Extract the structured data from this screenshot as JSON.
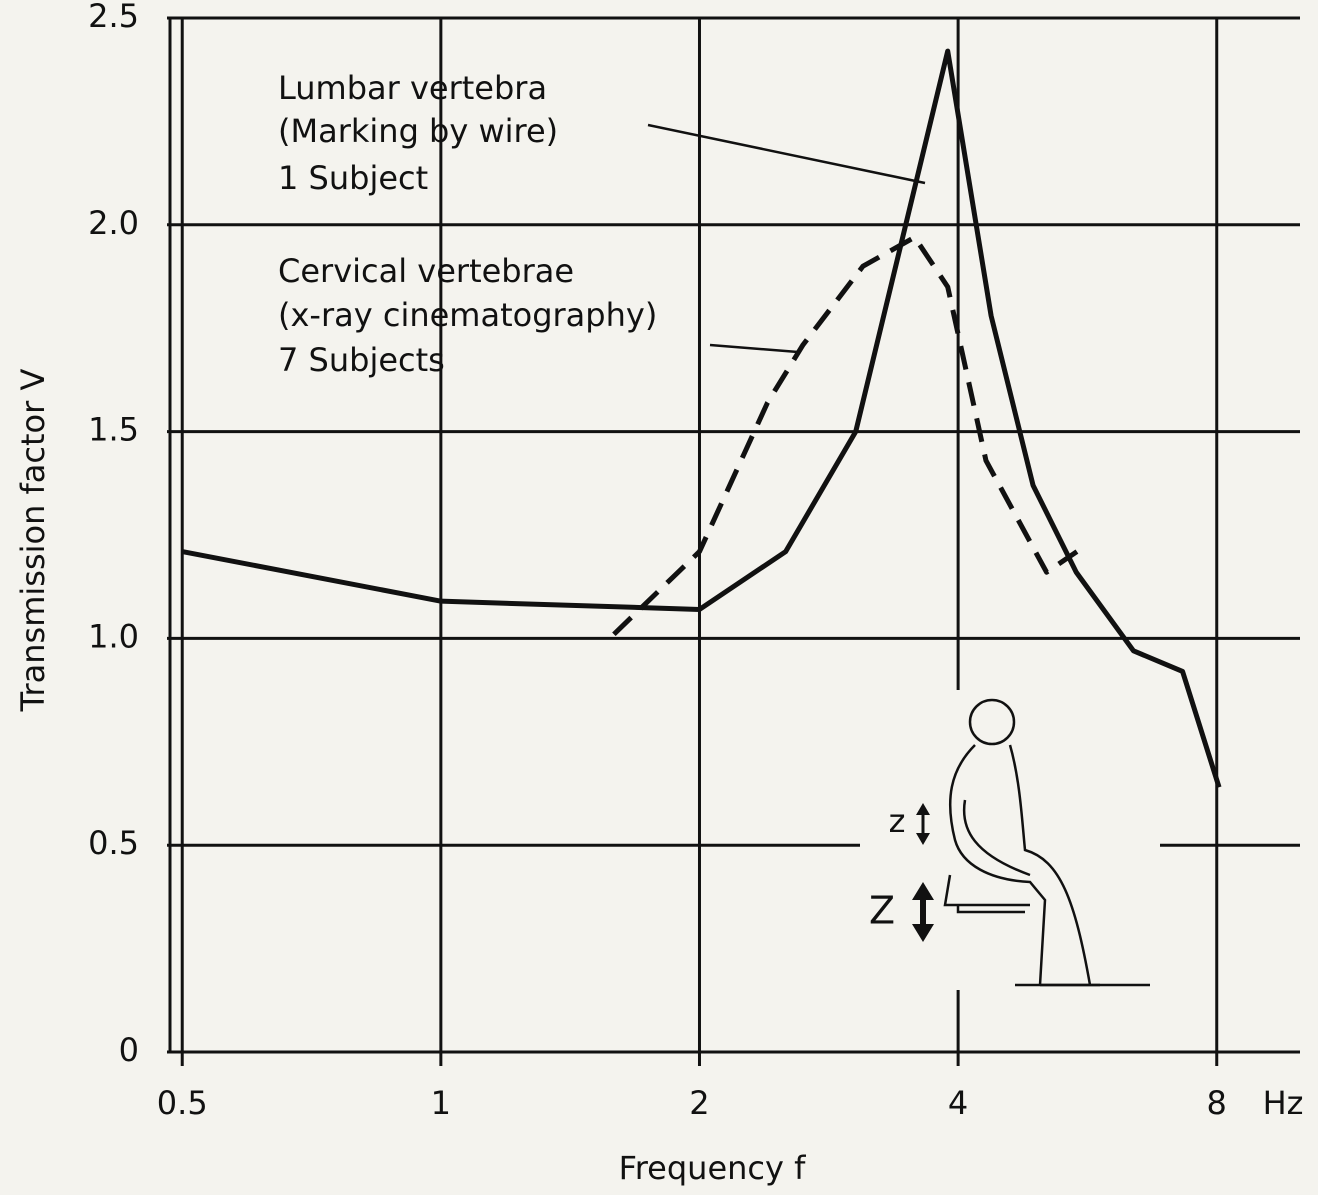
{
  "chart_data": {
    "type": "line",
    "xlabel": "Frequency  f",
    "ylabel": "Transmission factor  V",
    "x_unit": "Hz",
    "xscale": "log",
    "xlim": [
      0.48,
      10
    ],
    "ylim": [
      0,
      2.5
    ],
    "xticks": [
      0.5,
      1,
      2,
      4,
      8
    ],
    "yticks": [
      0,
      0.5,
      {
        "value": 1.0,
        "label": "1.0"
      },
      1.5,
      {
        "value": 2.0,
        "label": "2.0"
      },
      2.5
    ],
    "grid": true,
    "series": [
      {
        "name": "Lumbar vertebra",
        "annotation": [
          "(Marking by wire)",
          "1 Subject"
        ],
        "color": "#111111",
        "dash": false,
        "x": [
          0.5,
          1,
          2,
          2.52,
          3.04,
          3.89,
          4.37,
          4.89,
          5.49,
          6.4,
          7.3,
          8.05
        ],
        "values": [
          1.21,
          1.09,
          1.07,
          1.21,
          1.5,
          2.42,
          1.78,
          1.37,
          1.16,
          0.97,
          0.92,
          0.64
        ]
      },
      {
        "name": "Cervical vertebrae",
        "annotation": [
          "(x-ray cinematography)",
          "7 Subjects"
        ],
        "color": "#111111",
        "dash": true,
        "x": [
          1.59,
          2,
          2.4,
          2.64,
          3.1,
          3.56,
          3.89,
          4.31,
          5.07,
          5.5
        ],
        "values": [
          1.01,
          1.21,
          1.57,
          1.71,
          1.9,
          1.97,
          1.85,
          1.43,
          1.16,
          1.21
        ]
      }
    ],
    "figure_labels": [
      "z",
      "Z"
    ]
  }
}
